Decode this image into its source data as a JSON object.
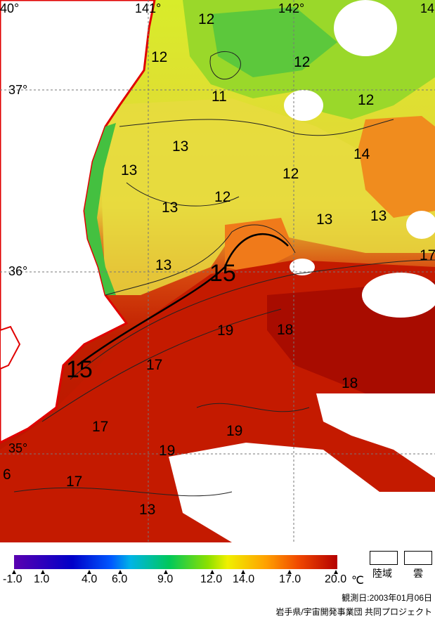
{
  "map": {
    "lat_labels": [
      "37°",
      "36°",
      "35°"
    ],
    "lon_labels": [
      "40°",
      "141°",
      "142°",
      "14"
    ],
    "isotherm_labels": [
      {
        "text": "12"
      },
      {
        "text": "12"
      },
      {
        "text": "12"
      },
      {
        "text": "12"
      },
      {
        "text": "11"
      },
      {
        "text": "13"
      },
      {
        "text": "13"
      },
      {
        "text": "12"
      },
      {
        "text": "14"
      },
      {
        "text": "12"
      },
      {
        "text": "13"
      },
      {
        "text": "13"
      },
      {
        "text": "13"
      },
      {
        "text": "13"
      },
      {
        "text": "15"
      },
      {
        "text": "17"
      },
      {
        "text": "19"
      },
      {
        "text": "18"
      },
      {
        "text": "15"
      },
      {
        "text": "17"
      },
      {
        "text": "18"
      },
      {
        "text": "17"
      },
      {
        "text": "19"
      },
      {
        "text": "19"
      },
      {
        "text": "6"
      },
      {
        "text": "17"
      },
      {
        "text": "13"
      }
    ]
  },
  "legend": {
    "scale_labels": [
      "-1.0",
      "1.0",
      "4.0",
      "6.0",
      "9.0",
      "12.0",
      "14.0",
      "17.0",
      "20.0"
    ],
    "unit": "℃",
    "land_label": "陸域",
    "cloud_label": "雲",
    "colors": {
      "cold": "#5a00b0",
      "mid": "#f0f000",
      "warm": "#b40000",
      "coast": "#e00000"
    }
  },
  "footer": {
    "date": "観測日:2003年01月06日",
    "credit": "岩手県/宇宙開発事業団 共同プロジェクト"
  }
}
